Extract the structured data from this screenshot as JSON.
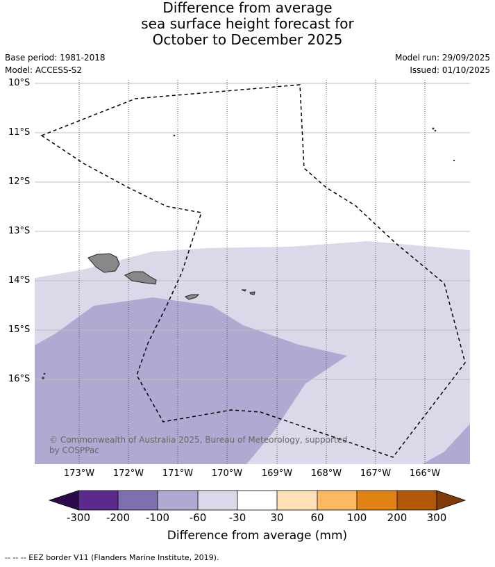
{
  "title": {
    "line1": "Difference from average",
    "line2": "sea surface height forecast for",
    "line3": "October to December 2025"
  },
  "meta": {
    "base_period": "Base period: 1981-2018",
    "model": "Model: ACCESS-S2",
    "model_run": "Model run: 29/09/2025",
    "issued": "Issued: 01/10/2025"
  },
  "latitudes": [
    "10°S",
    "11°S",
    "12°S",
    "13°S",
    "14°S",
    "15°S",
    "16°S"
  ],
  "longitudes": [
    "173°W",
    "172°W",
    "171°W",
    "170°W",
    "169°W",
    "168°W",
    "167°W",
    "166°W"
  ],
  "copyright": {
    "line1": "© Commonwealth of Australia 2025, Bureau of Meteorology, supported",
    "line2": "by COSPPac"
  },
  "colorbar": {
    "title": "Difference from average (mm)",
    "ticks": [
      "-300",
      "-200",
      "-100",
      "-60",
      "-30",
      "30",
      "60",
      "100",
      "200",
      "300"
    ],
    "colors": {
      "below_min": "#2d0a4e",
      "c1": "#5b2a8a",
      "c2": "#7e6fae",
      "c3": "#b0a9d1",
      "c4": "#d9d9ea",
      "c5": "#ffffff",
      "c6": "#fee0b6",
      "c7": "#fdb863",
      "c8": "#e08214",
      "c9": "#b35806",
      "above_max": "#7f3b08"
    }
  },
  "footer": "--  --  -- EEZ border V11 (Flanders Marine Institute, 2019)."
}
